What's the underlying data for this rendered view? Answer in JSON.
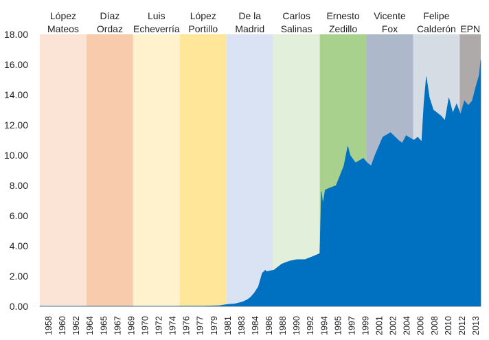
{
  "chart_data": {
    "type": "area",
    "title": "",
    "xlabel": "",
    "ylabel": "",
    "ylim": [
      0,
      18
    ],
    "y_ticks": [
      "0.00",
      "2.00",
      "4.00",
      "6.00",
      "8.00",
      "10.00",
      "12.00",
      "14.00",
      "16.00",
      "18.00"
    ],
    "x_ticks": [
      "1958",
      "1960",
      "1962",
      "1964",
      "1965",
      "1967",
      "1969",
      "1970",
      "1972",
      "1974",
      "1976",
      "1977",
      "1979",
      "1981",
      "1983",
      "1984",
      "1986",
      "1988",
      "1990",
      "1992",
      "1994",
      "1995",
      "1997",
      "1999",
      "2001",
      "2002",
      "2004",
      "2006",
      "2008",
      "2010",
      "2012",
      "2013"
    ],
    "grid": false,
    "legend": "none",
    "series_color": "#0070c0",
    "periods": [
      {
        "label_lines": [
          "López",
          "Mateos"
        ],
        "start": 1958.9,
        "end": 1964.9,
        "color": "#fbe3d6"
      },
      {
        "label_lines": [
          "Díaz",
          "Ordaz"
        ],
        "start": 1964.9,
        "end": 1970.9,
        "color": "#f8cbad"
      },
      {
        "label_lines": [
          "Luis",
          "Echeverría"
        ],
        "start": 1970.9,
        "end": 1976.9,
        "color": "#fff2cc"
      },
      {
        "label_lines": [
          "López",
          "Portillo"
        ],
        "start": 1976.9,
        "end": 1982.9,
        "color": "#ffe699"
      },
      {
        "label_lines": [
          "De la",
          "Madrid"
        ],
        "start": 1982.9,
        "end": 1988.9,
        "color": "#dae3f3"
      },
      {
        "label_lines": [
          "Carlos",
          "Salinas"
        ],
        "start": 1988.9,
        "end": 1994.9,
        "color": "#e2efda"
      },
      {
        "label_lines": [
          "Ernesto",
          "Zedillo"
        ],
        "start": 1994.9,
        "end": 2000.9,
        "color": "#a9d18e"
      },
      {
        "label_lines": [
          "Vicente",
          "Fox"
        ],
        "start": 2000.9,
        "end": 2006.9,
        "color": "#adb9ca"
      },
      {
        "label_lines": [
          "Felipe",
          "Calderón"
        ],
        "start": 2006.9,
        "end": 2012.9,
        "color": "#d6dce4"
      },
      {
        "label_lines": [
          "EPN"
        ],
        "start": 2012.9,
        "end": 2015.6,
        "color": "#aeaaaa"
      }
    ],
    "x": [
      1958.9,
      1976.5,
      1977.0,
      1980.0,
      1982.0,
      1982.9,
      1983.5,
      1984.0,
      1985.0,
      1985.6,
      1986.0,
      1986.5,
      1987.0,
      1987.5,
      1987.9,
      1988.0,
      1989.0,
      1990.0,
      1991.0,
      1992.0,
      1993.0,
      1994.0,
      1994.9,
      1995.0,
      1995.1,
      1995.3,
      1995.6,
      1996.0,
      1997.0,
      1998.0,
      1998.5,
      1998.8,
      1999.5,
      2000.5,
      2001.0,
      2001.5,
      2002.0,
      2003.0,
      2004.0,
      2005.0,
      2005.5,
      2006.0,
      2007.0,
      2007.5,
      2008.0,
      2008.3,
      2008.6,
      2009.0,
      2009.5,
      2010.0,
      2010.5,
      2011.0,
      2011.5,
      2012.0,
      2012.5,
      2013.0,
      2013.5,
      2014.0,
      2014.5,
      2015.0,
      2015.4,
      2015.6
    ],
    "y": [
      0.0125,
      0.0125,
      0.023,
      0.023,
      0.05,
      0.12,
      0.15,
      0.17,
      0.3,
      0.45,
      0.6,
      0.9,
      1.3,
      2.2,
      2.4,
      2.3,
      2.4,
      2.8,
      3.0,
      3.1,
      3.1,
      3.3,
      3.5,
      5.5,
      7.6,
      6.8,
      7.7,
      7.8,
      8.0,
      9.3,
      10.6,
      10.0,
      9.5,
      9.8,
      9.5,
      9.3,
      10.0,
      11.2,
      11.5,
      11.0,
      10.8,
      11.3,
      11.0,
      11.2,
      10.9,
      13.5,
      15.2,
      13.8,
      13.0,
      12.8,
      12.6,
      12.3,
      13.8,
      12.8,
      13.4,
      12.7,
      13.6,
      13.3,
      13.6,
      14.6,
      15.3,
      16.3
    ]
  }
}
